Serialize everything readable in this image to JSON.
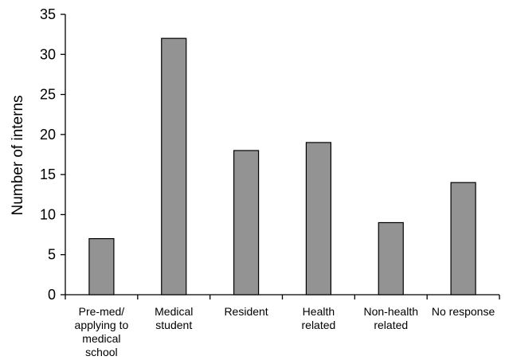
{
  "chart_data": {
    "type": "bar",
    "title": "",
    "xlabel": "",
    "ylabel": "Number of interns",
    "ylim": [
      0,
      35
    ],
    "yticks": [
      0,
      5,
      10,
      15,
      20,
      25,
      30,
      35
    ],
    "grid": false,
    "categories": [
      [
        "Pre-med/",
        "applying to",
        "medical",
        "school"
      ],
      [
        "Medical",
        "student"
      ],
      [
        "Resident"
      ],
      [
        "Health",
        "related"
      ],
      [
        "Non-health",
        "related"
      ],
      [
        "No response"
      ]
    ],
    "values": [
      7,
      32,
      18,
      19,
      9,
      14
    ],
    "bar_color": "#939393",
    "bar_edge_color": "#000000"
  }
}
